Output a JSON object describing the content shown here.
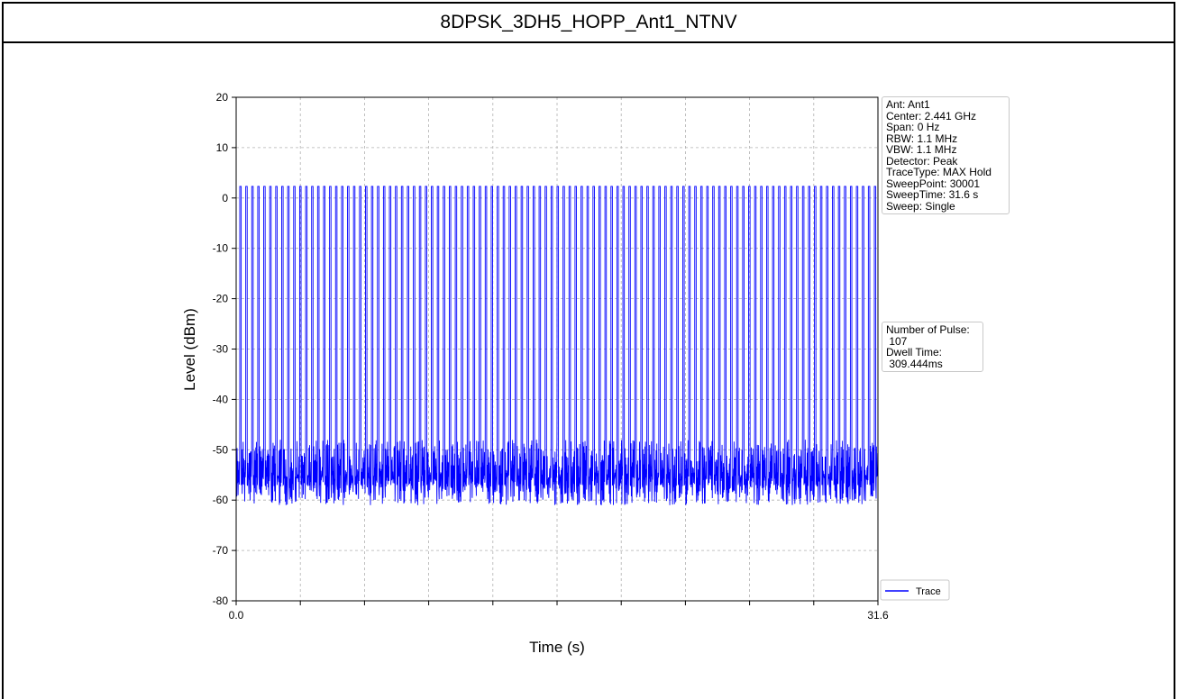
{
  "title": "8DPSK_3DH5_HOPP_Ant1_NTNV",
  "settings_box": [
    "Ant: Ant1",
    "Center: 2.441 GHz",
    "Span: 0 Hz",
    "RBW: 1.1 MHz",
    "VBW: 1.1 MHz",
    "Detector: Peak",
    "TraceType: MAX Hold",
    "SweepPoint: 30001",
    "SweepTime: 31.6 s",
    "Sweep: Single"
  ],
  "result_box": [
    "Number of Pulse:",
    " 107",
    "Dwell Time:",
    " 309.444ms"
  ],
  "chart_data": {
    "type": "line",
    "xlabel": "Time (s)",
    "ylabel": "Level (dBm)",
    "xlim": [
      0.0,
      31.6
    ],
    "ylim": [
      -80,
      20
    ],
    "x_tick_labels": [
      "0.0",
      "31.6"
    ],
    "y_ticks": [
      20,
      10,
      0,
      -10,
      -20,
      -30,
      -40,
      -50,
      -60,
      -70,
      -80
    ],
    "grid": true,
    "legend": "bottom-right, outside plot",
    "series": [
      {
        "name": "Trace",
        "color": "#0000ff",
        "pulse_count": 107,
        "pulse_peak_dbm": 2.3,
        "noise_floor_dbm": [
          -61,
          -42
        ]
      }
    ]
  }
}
